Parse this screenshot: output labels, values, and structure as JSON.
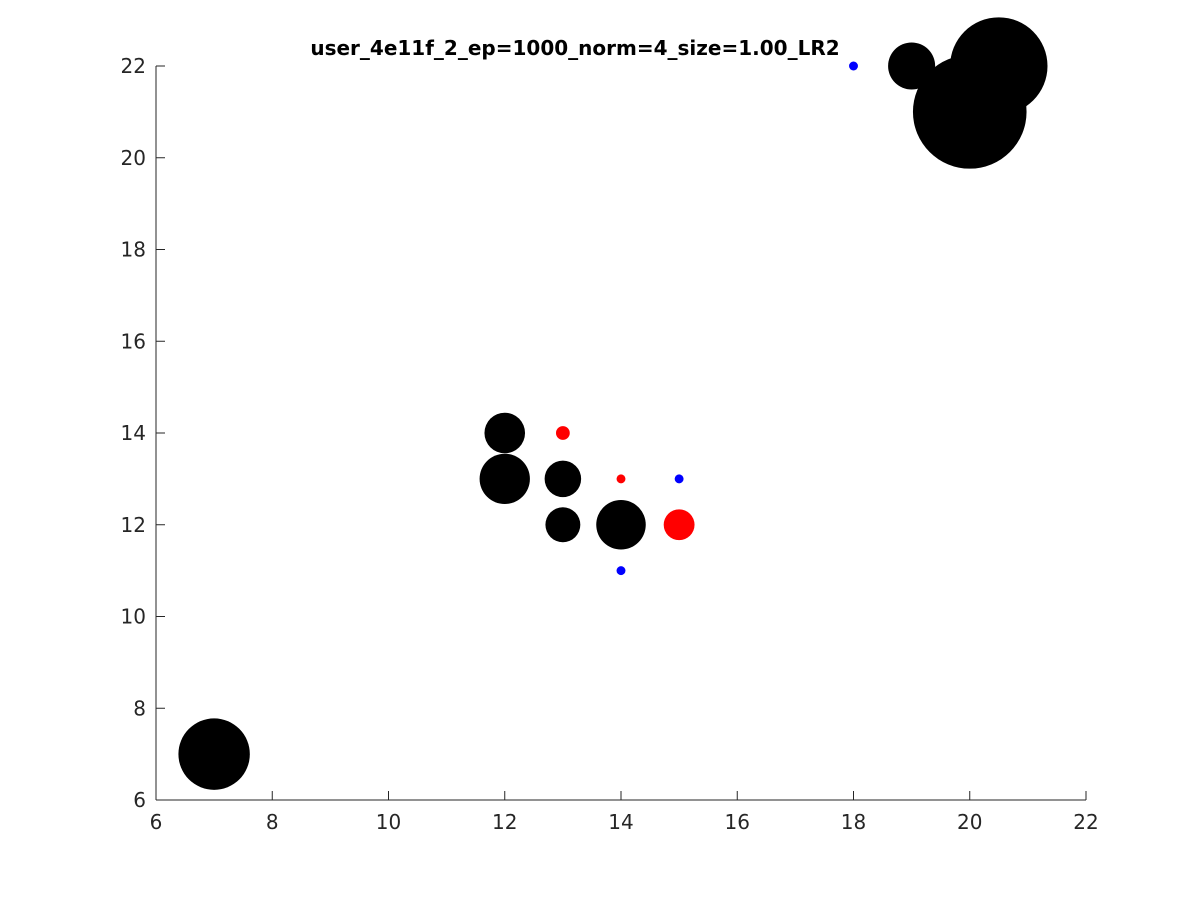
{
  "chart_data": {
    "type": "scatter",
    "title": "user_4e11f_2_ep=1000_norm=4_size=1.00_LR2",
    "xlabel": "",
    "ylabel": "",
    "xlim": [
      6,
      22
    ],
    "ylim": [
      6,
      22
    ],
    "xticks": [
      6,
      8,
      10,
      12,
      14,
      16,
      18,
      20,
      22
    ],
    "yticks": [
      6,
      8,
      10,
      12,
      14,
      16,
      18,
      20,
      22
    ],
    "xtick_labels": [
      "6",
      "8",
      "10",
      "12",
      "14",
      "16",
      "18",
      "20",
      "22"
    ],
    "ytick_labels": [
      "6",
      "8",
      "10",
      "12",
      "14",
      "16",
      "18",
      "20",
      "22"
    ],
    "grid": false,
    "legend": "none",
    "markers_note": "marker size varies per point (relative size 0-1)",
    "series": [
      {
        "color": "#000000",
        "points": [
          {
            "x": 7,
            "y": 7,
            "size": 0.88
          },
          {
            "x": 12,
            "y": 14,
            "size": 0.5
          },
          {
            "x": 12,
            "y": 13,
            "size": 0.62
          },
          {
            "x": 13,
            "y": 13,
            "size": 0.45
          },
          {
            "x": 13,
            "y": 12,
            "size": 0.43
          },
          {
            "x": 14,
            "y": 12,
            "size": 0.61
          },
          {
            "x": 19,
            "y": 22,
            "size": 0.58
          },
          {
            "x": 20,
            "y": 21,
            "size": 1.4
          },
          {
            "x": 20.5,
            "y": 22,
            "size": 1.2
          }
        ]
      },
      {
        "color": "#ff0000",
        "points": [
          {
            "x": 13,
            "y": 14,
            "size": 0.17
          },
          {
            "x": 14,
            "y": 13,
            "size": 0.11
          },
          {
            "x": 15,
            "y": 12,
            "size": 0.38
          }
        ]
      },
      {
        "color": "#0000ff",
        "points": [
          {
            "x": 18,
            "y": 22,
            "size": 0.11
          },
          {
            "x": 15,
            "y": 13,
            "size": 0.11
          },
          {
            "x": 14,
            "y": 11,
            "size": 0.11
          }
        ]
      }
    ]
  }
}
